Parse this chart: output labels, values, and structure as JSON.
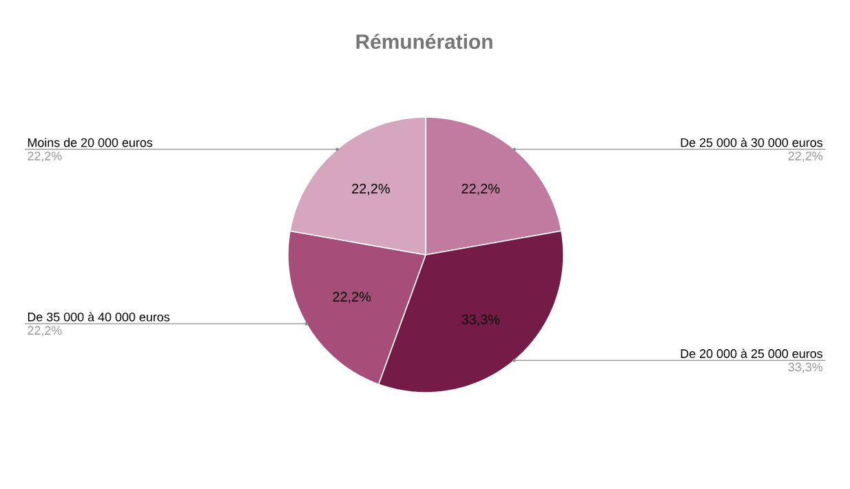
{
  "chart_data": {
    "type": "pie",
    "title": "Rémunération",
    "categories": [
      "De 25 000 à 30 000 euros",
      "De 20 000 à 25 000 euros",
      "De 35 000 à 40 000 euros",
      "Moins de 20 000 euros"
    ],
    "values": [
      22.2,
      33.3,
      22.2,
      22.2
    ],
    "value_labels": [
      "22,2%",
      "33,3%",
      "22,2%",
      "22,2%"
    ],
    "colors": [
      "#c27ba0",
      "#741b47",
      "#a64d79",
      "#d5a6bd"
    ]
  }
}
